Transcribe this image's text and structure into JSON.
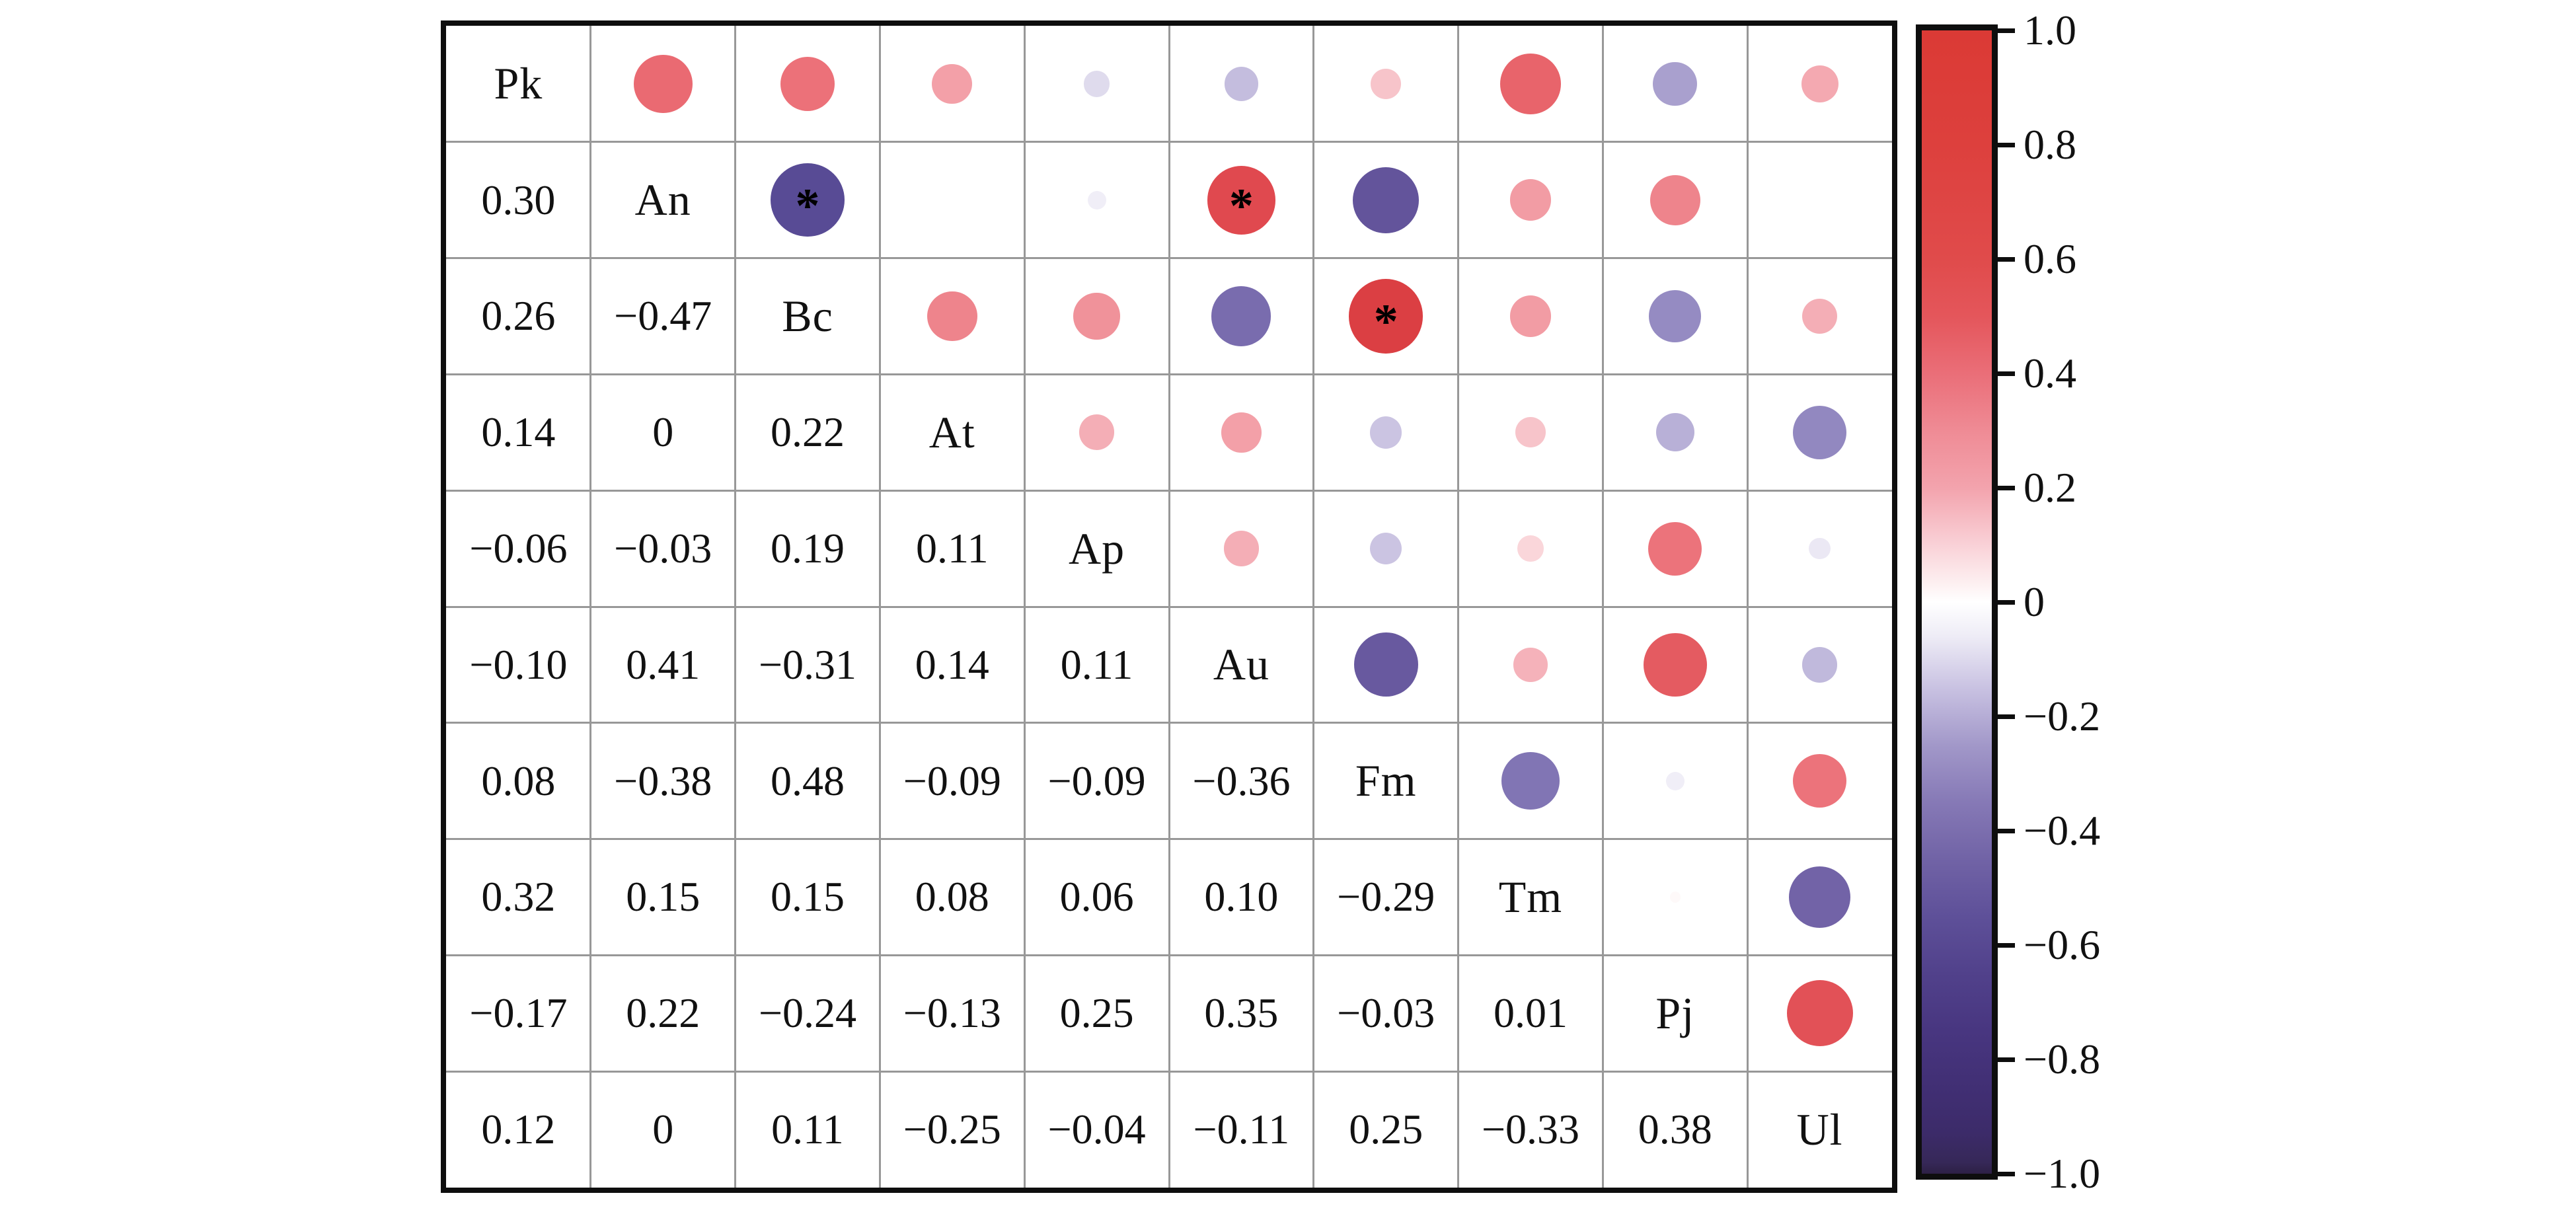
{
  "figure": {
    "background": "#ffffff",
    "box_border_color": "#0e0e0e",
    "grid_color": "#989898",
    "text_color": "#111111"
  },
  "chart_data": {
    "type": "heatmap",
    "subtype": "correlation-matrix-corrplot-mixed",
    "title": "",
    "variables": [
      "Pk",
      "An",
      "Bc",
      "At",
      "Ap",
      "Au",
      "Fm",
      "Tm",
      "Pj",
      "Ul"
    ],
    "lower_triangle_rows": [
      "An",
      "Bc",
      "At",
      "Ap",
      "Au",
      "Fm",
      "Tm",
      "Pj",
      "Ul"
    ],
    "lower_triangle_values": [
      [
        0.3
      ],
      [
        0.26,
        -0.47
      ],
      [
        0.14,
        0,
        0.22
      ],
      [
        -0.06,
        -0.03,
        0.19,
        0.11
      ],
      [
        -0.1,
        0.41,
        -0.31,
        0.14,
        0.11
      ],
      [
        0.08,
        -0.38,
        0.48,
        -0.09,
        -0.09,
        -0.36
      ],
      [
        0.32,
        0.15,
        0.15,
        0.08,
        0.06,
        0.1,
        -0.29
      ],
      [
        -0.17,
        0.22,
        -0.24,
        -0.13,
        0.25,
        0.35,
        -0.03,
        0.01
      ],
      [
        0.12,
        0,
        0.11,
        -0.25,
        -0.04,
        -0.11,
        0.25,
        -0.33,
        0.38
      ]
    ],
    "display": {
      "diagonal": "variable-label",
      "lower_triangle": "number",
      "upper_triangle": "circle",
      "circle_size_rule": "diameter proportional to sqrt(|r|)",
      "zero_values_draw_no_circle": true
    },
    "significance_symbol": "*",
    "significant_pairs": [
      [
        "An",
        "Bc"
      ],
      [
        "An",
        "Au"
      ],
      [
        "Bc",
        "Fm"
      ]
    ],
    "colorbar": {
      "orientation": "vertical",
      "position": "right",
      "range": [
        -1,
        1
      ],
      "tick_labels": [
        "1.0",
        "0.8",
        "0.6",
        "0.4",
        "0.2",
        "0",
        "−0.2",
        "−0.4",
        "−0.6",
        "−0.8",
        "−1.0"
      ],
      "gradient_stops": [
        {
          "v": 1.0,
          "c": "#db3a35"
        },
        {
          "v": 0.8,
          "c": "#dd403d"
        },
        {
          "v": 0.6,
          "c": "#e04b4b"
        },
        {
          "v": 0.5,
          "c": "#e4565b"
        },
        {
          "v": 0.4,
          "c": "#ea6e78"
        },
        {
          "v": 0.3,
          "c": "#ef8b95"
        },
        {
          "v": 0.2,
          "c": "#f3a3ad"
        },
        {
          "v": 0.1,
          "c": "#f9d1d7"
        },
        {
          "v": 0.03,
          "c": "#fdf1f2"
        },
        {
          "v": 0.0,
          "c": "#ffffff"
        },
        {
          "v": -0.06,
          "c": "#eeecf6"
        },
        {
          "v": -0.15,
          "c": "#c9c2e2"
        },
        {
          "v": -0.25,
          "c": "#a298c9"
        },
        {
          "v": -0.35,
          "c": "#8679b6"
        },
        {
          "v": -0.45,
          "c": "#7163a6"
        },
        {
          "v": -0.55,
          "c": "#5e5099"
        },
        {
          "v": -0.65,
          "c": "#51418b"
        },
        {
          "v": -0.75,
          "c": "#483680"
        },
        {
          "v": -0.85,
          "c": "#412f74"
        },
        {
          "v": -0.93,
          "c": "#3c2b69"
        },
        {
          "v": -0.98,
          "c": "#362858"
        },
        {
          "v": -1.0,
          "c": "#2d2045"
        }
      ]
    },
    "circle_colormap_stops": [
      {
        "v": 1.0,
        "c": "#d1302f"
      },
      {
        "v": 0.5,
        "c": "#da3c41"
      },
      {
        "v": 0.45,
        "c": "#dd4347"
      },
      {
        "v": 0.4,
        "c": "#e14b51"
      },
      {
        "v": 0.35,
        "c": "#e45b61"
      },
      {
        "v": 0.3,
        "c": "#ea6a72"
      },
      {
        "v": 0.25,
        "c": "#ec737b"
      },
      {
        "v": 0.2,
        "c": "#f08f97"
      },
      {
        "v": 0.15,
        "c": "#f29ca4"
      },
      {
        "v": 0.1,
        "c": "#f5b2ba"
      },
      {
        "v": 0.05,
        "c": "#fbdfe2"
      },
      {
        "v": 0.0,
        "c": "#ffffff"
      },
      {
        "v": -0.05,
        "c": "#e6e2f1"
      },
      {
        "v": -0.1,
        "c": "#c4bdde"
      },
      {
        "v": -0.15,
        "c": "#b0a8d2"
      },
      {
        "v": -0.2,
        "c": "#9f95c8"
      },
      {
        "v": -0.25,
        "c": "#9288c0"
      },
      {
        "v": -0.3,
        "c": "#7d70b1"
      },
      {
        "v": -0.35,
        "c": "#6a5ba1"
      },
      {
        "v": -0.4,
        "c": "#5e4f97"
      },
      {
        "v": -0.5,
        "c": "#564994"
      },
      {
        "v": -1.0,
        "c": "#4a3c86"
      }
    ]
  }
}
